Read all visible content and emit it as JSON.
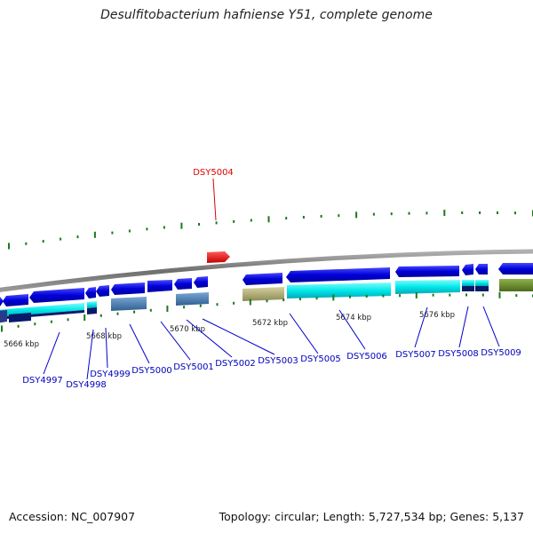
{
  "title": "Desulfitobacterium hafniense Y51, complete genome",
  "accession": "Accession: NC_007907",
  "topology": "Topology: circular; Length: 5,727,534 bp; Genes: 5,137",
  "highlight_label": "DSY5004",
  "colors": {
    "backbone": "#777777",
    "gene_blue": "#0000cc",
    "highlight": "#ee0000",
    "cyan": "#00e8e8",
    "steel": "#4a82b8",
    "khaki": "#b8b47c",
    "olive": "#6a8c2a",
    "navy": "#0a1a6a",
    "tick": "#1a7a1a",
    "label_blue": "#0000bb"
  },
  "kbp_labels": [
    "5666 kbp",
    "5668 kbp",
    "5670 kbp",
    "5672 kbp",
    "5674 kbp",
    "5676 kbp"
  ],
  "gene_labels": [
    "DSY4997",
    "DSY4998",
    "DSY4999",
    "DSY5000",
    "DSY5001",
    "DSY5002",
    "DSY5003",
    "DSY5005",
    "DSY5006",
    "DSY5007",
    "DSY5008",
    "DSY5009"
  ]
}
